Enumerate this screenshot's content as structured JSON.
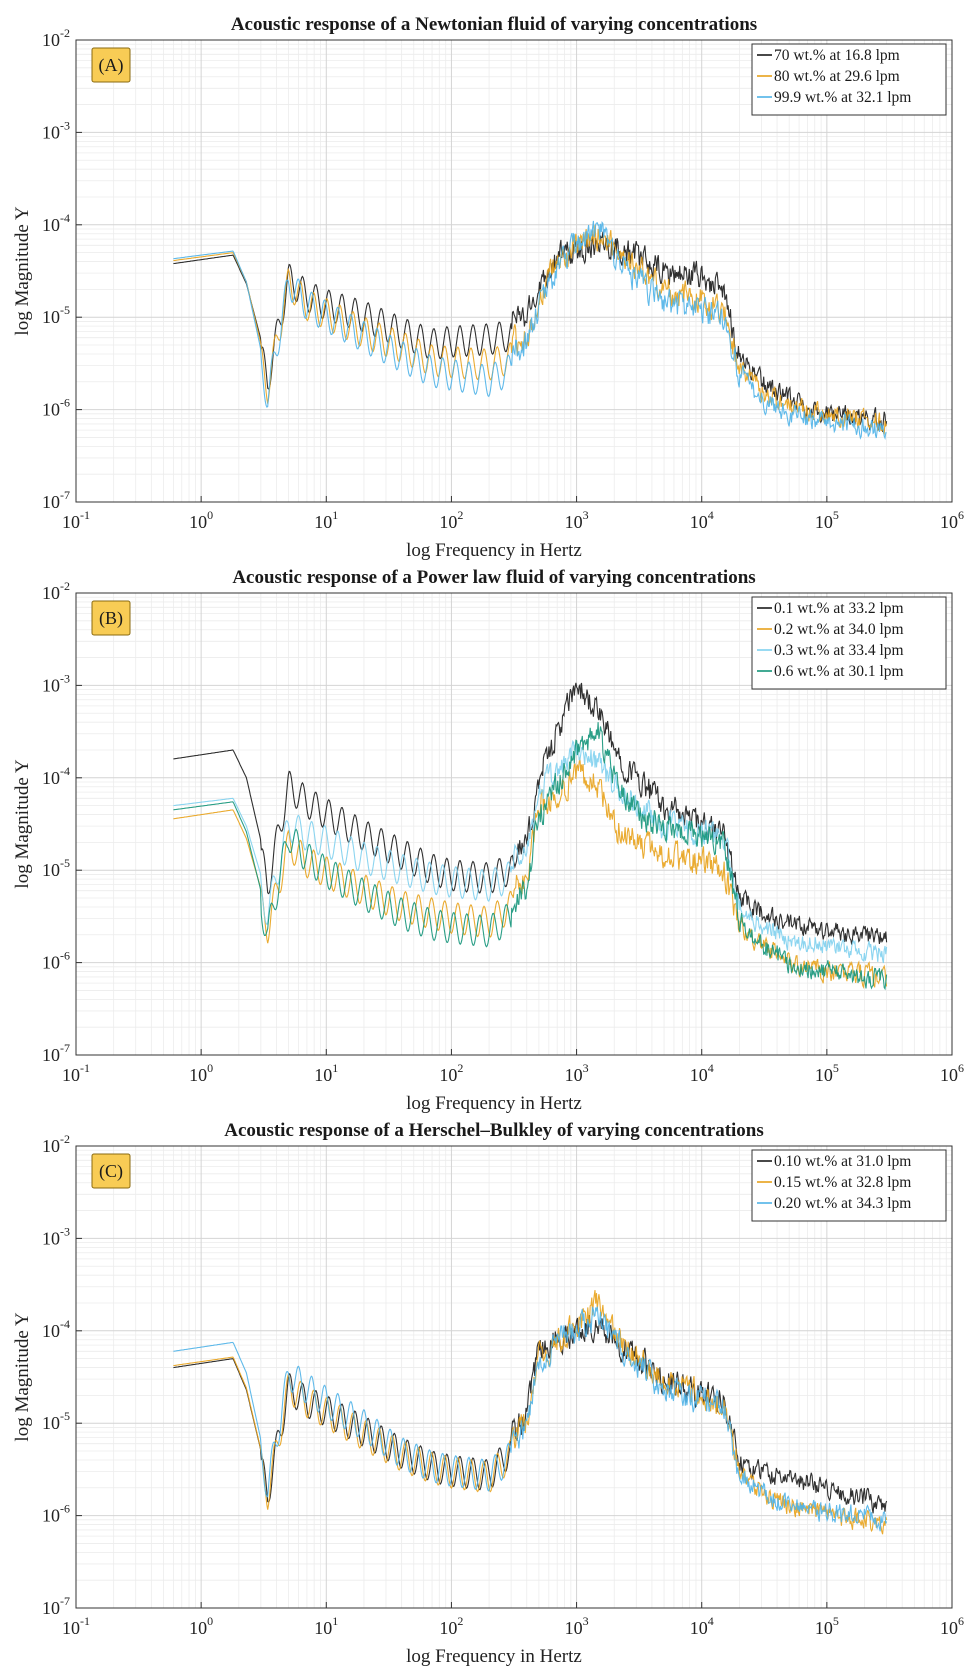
{
  "chart_data": [
    {
      "type": "line",
      "panel_label": "(A)",
      "title": "Acoustic response of a Newtonian fluid of varying concentrations",
      "xlabel": "log Frequency in Hertz",
      "ylabel": "log Magnitude Y",
      "xscale": "log",
      "yscale": "log",
      "xlim": [
        0.1,
        1000000
      ],
      "ylim": [
        1e-07,
        0.01
      ],
      "xticks": [
        "10^-1",
        "10^0",
        "10^1",
        "10^2",
        "10^3",
        "10^4",
        "10^5",
        "10^6"
      ],
      "yticks": [
        "10^-7",
        "10^-6",
        "10^-5",
        "10^-4",
        "10^-3",
        "10^-2"
      ],
      "grid": true,
      "legend_position": "top-right",
      "series": [
        {
          "name": "70 wt.% at 16.8 lpm",
          "color": "#1a1a1a",
          "x": [
            0.6,
            1.8,
            2.3,
            3.4,
            5,
            7,
            10,
            20,
            40,
            70,
            100,
            200,
            400,
            500,
            700,
            1000,
            1500,
            2000,
            3000,
            5000,
            10000,
            15000,
            20000,
            30000,
            50000,
            100000,
            200000,
            300000
          ],
          "y": [
            3.8e-05,
            4.7e-05,
            2.3e-05,
            3e-06,
            3.8e-05,
            2.5e-05,
            2e-05,
            1.5e-05,
            1e-05,
            7.5e-06,
            8e-06,
            8.5e-06,
            1e-05,
            2.2e-05,
            4.5e-05,
            5e-05,
            7e-05,
            6e-05,
            4.5e-05,
            3e-05,
            2.8e-05,
            1.8e-05,
            4e-06,
            2e-06,
            1.3e-06,
            9e-07,
            8e-07,
            7.5e-07
          ]
        },
        {
          "name": "80 wt.% at 29.6 lpm",
          "color": "#e8a21b",
          "x": [
            0.6,
            1.8,
            2.3,
            3.4,
            5,
            7,
            10,
            20,
            40,
            70,
            100,
            200,
            400,
            500,
            700,
            1000,
            1500,
            2000,
            3000,
            5000,
            10000,
            15000,
            20000,
            30000,
            50000,
            100000,
            200000,
            300000
          ],
          "y": [
            4.1e-05,
            5e-05,
            2.4e-05,
            2.5e-06,
            3.5e-05,
            2e-05,
            1.6e-05,
            1e-05,
            7e-06,
            5e-06,
            4.8e-06,
            4.5e-06,
            6e-06,
            1.5e-05,
            4e-05,
            5.5e-05,
            8e-05,
            6e-05,
            3.5e-05,
            2e-05,
            1.5e-05,
            1.2e-05,
            3e-06,
            1.6e-06,
            1.1e-06,
            9e-07,
            8e-07,
            7e-07
          ]
        },
        {
          "name": "99.9 wt.% at 32.1 lpm",
          "color": "#4fb3e8",
          "x": [
            0.6,
            1.8,
            2.3,
            3.4,
            5,
            7,
            10,
            20,
            40,
            70,
            100,
            200,
            400,
            500,
            700,
            1000,
            1500,
            2000,
            3000,
            5000,
            10000,
            15000,
            20000,
            30000,
            50000,
            100000,
            200000,
            300000
          ],
          "y": [
            4.3e-05,
            5.2e-05,
            2.4e-05,
            2e-06,
            3.5e-05,
            2e-05,
            1.5e-05,
            9e-06,
            5.5e-06,
            3.8e-06,
            3.5e-06,
            3e-06,
            5e-06,
            1.3e-05,
            3.5e-05,
            6e-05,
            9e-05,
            5e-05,
            2.5e-05,
            1.5e-05,
            1.2e-05,
            1e-05,
            2.5e-06,
            1.3e-06,
            9e-07,
            7.5e-07,
            6.5e-07,
            6e-07
          ]
        }
      ]
    },
    {
      "type": "line",
      "panel_label": "(B)",
      "title": "Acoustic response of a Power law fluid of varying concentrations",
      "xlabel": "log Frequency in Hertz",
      "ylabel": "log Magnitude Y",
      "xscale": "log",
      "yscale": "log",
      "xlim": [
        0.1,
        1000000
      ],
      "ylim": [
        1e-07,
        0.01
      ],
      "xticks": [
        "10^-1",
        "10^0",
        "10^1",
        "10^2",
        "10^3",
        "10^4",
        "10^5",
        "10^6"
      ],
      "yticks": [
        "10^-7",
        "10^-6",
        "10^-5",
        "10^-4",
        "10^-3",
        "10^-2"
      ],
      "grid": true,
      "legend_position": "top-right",
      "series": [
        {
          "name": "0.1 wt.% at 33.2 lpm",
          "color": "#1a1a1a",
          "x": [
            0.6,
            1.8,
            2.3,
            3.4,
            5,
            7,
            10,
            20,
            40,
            70,
            100,
            200,
            400,
            500,
            700,
            1000,
            1500,
            2000,
            3000,
            5000,
            10000,
            15000,
            20000,
            30000,
            50000,
            100000,
            200000,
            300000
          ],
          "y": [
            0.00016,
            0.0002,
            0.0001,
            1e-05,
            0.00012,
            8e-05,
            6e-05,
            3.5e-05,
            2.2e-05,
            1.5e-05,
            1.3e-05,
            1.2e-05,
            1.8e-05,
            0.0001,
            0.0003,
            0.001,
            0.0005,
            0.0002,
            0.0001,
            5e-05,
            3e-05,
            2.5e-05,
            5e-06,
            3.5e-06,
            2.5e-06,
            2.2e-06,
            2e-06,
            1.8e-06
          ]
        },
        {
          "name": "0.2 wt.% at 34.0 lpm",
          "color": "#e8a21b",
          "x": [
            0.6,
            1.8,
            2.3,
            3.4,
            5,
            7,
            10,
            20,
            40,
            70,
            100,
            200,
            400,
            500,
            700,
            1000,
            1500,
            2000,
            3000,
            5000,
            10000,
            15000,
            20000,
            30000,
            50000,
            100000,
            200000,
            300000
          ],
          "y": [
            3.6e-05,
            4.5e-05,
            2.2e-05,
            3.5e-06,
            2.8e-05,
            1.8e-05,
            1.4e-05,
            9e-06,
            6e-06,
            5e-06,
            4.5e-06,
            4e-06,
            8e-06,
            5e-05,
            6e-05,
            0.00012,
            8e-05,
            3e-05,
            2e-05,
            1.5e-05,
            1.2e-05,
            1e-05,
            2.5e-06,
            1.5e-06,
            1e-06,
            8e-07,
            7.5e-07,
            7e-07
          ]
        },
        {
          "name": "0.3 wt.% at 33.4 lpm",
          "color": "#7fd0ee",
          "x": [
            0.6,
            1.8,
            2.3,
            3.4,
            5,
            7,
            10,
            20,
            40,
            70,
            100,
            200,
            400,
            500,
            700,
            1000,
            1500,
            2000,
            3000,
            5000,
            10000,
            15000,
            20000,
            30000,
            50000,
            100000,
            200000,
            300000
          ],
          "y": [
            5e-05,
            6e-05,
            3e-05,
            5e-06,
            4.5e-05,
            3.5e-05,
            3e-05,
            2e-05,
            1.5e-05,
            1.2e-05,
            1.1e-05,
            1e-05,
            1.5e-05,
            7e-05,
            0.00012,
            0.0002,
            0.00015,
            8e-05,
            5e-05,
            3e-05,
            2.5e-05,
            2.2e-05,
            4e-06,
            2.5e-06,
            1.8e-06,
            1.5e-06,
            1.3e-06,
            1.2e-06
          ]
        },
        {
          "name": "0.6 wt.% at 30.1 lpm",
          "color": "#14957a",
          "x": [
            0.6,
            1.8,
            2.3,
            3.4,
            5,
            7,
            10,
            20,
            40,
            70,
            100,
            200,
            400,
            500,
            700,
            1000,
            1500,
            2000,
            3000,
            5000,
            10000,
            15000,
            20000,
            30000,
            50000,
            100000,
            200000,
            300000
          ],
          "y": [
            4.5e-05,
            5.5e-05,
            2.6e-05,
            3e-06,
            3.5e-05,
            2e-05,
            1.4e-05,
            8e-06,
            5e-06,
            3.8e-06,
            3.5e-06,
            3.2e-06,
            6e-06,
            4e-05,
            8e-05,
            0.0002,
            0.0003,
            0.0001,
            4e-05,
            3e-05,
            2.5e-05,
            2e-05,
            3e-06,
            1.5e-06,
            1e-06,
            8e-07,
            7e-07,
            6.5e-07
          ]
        }
      ]
    },
    {
      "type": "line",
      "panel_label": "(C)",
      "title": "Acoustic response of a Herschel–Bulkley of varying concentrations",
      "xlabel": "log Frequency in Hertz",
      "ylabel": "log Magnitude Y",
      "xscale": "log",
      "yscale": "log",
      "xlim": [
        0.1,
        1000000
      ],
      "ylim": [
        1e-07,
        0.01
      ],
      "xticks": [
        "10^-1",
        "10^0",
        "10^1",
        "10^2",
        "10^3",
        "10^4",
        "10^5",
        "10^6"
      ],
      "yticks": [
        "10^-7",
        "10^-6",
        "10^-5",
        "10^-4",
        "10^-3",
        "10^-2"
      ],
      "grid": true,
      "legend_position": "top-right",
      "series": [
        {
          "name": "0.10 wt.% at 31.0 lpm",
          "color": "#1a1a1a",
          "x": [
            0.6,
            1.8,
            2.3,
            3.4,
            5,
            7,
            10,
            20,
            40,
            70,
            100,
            200,
            400,
            500,
            700,
            1000,
            1500,
            2000,
            3000,
            5000,
            10000,
            15000,
            20000,
            30000,
            50000,
            100000,
            200000,
            300000
          ],
          "y": [
            4e-05,
            5e-05,
            2.3e-05,
            2.5e-06,
            3.5e-05,
            2.5e-05,
            2e-05,
            1.2e-05,
            7e-06,
            5e-06,
            4.5e-06,
            4e-06,
            1.2e-05,
            6e-05,
            8e-05,
            0.0001,
            0.00012,
            8e-05,
            5e-05,
            3e-05,
            2e-05,
            1.8e-05,
            4e-06,
            3e-06,
            2.5e-06,
            2e-06,
            1.5e-06,
            1.3e-06
          ]
        },
        {
          "name": "0.15 wt.% at 32.8 lpm",
          "color": "#e8a21b",
          "x": [
            0.6,
            1.8,
            2.3,
            3.4,
            5,
            7,
            10,
            20,
            40,
            70,
            100,
            200,
            400,
            500,
            700,
            1000,
            1500,
            2000,
            3000,
            5000,
            10000,
            15000,
            20000,
            30000,
            50000,
            100000,
            200000,
            300000
          ],
          "y": [
            4.2e-05,
            5.2e-05,
            2.4e-05,
            2.5e-06,
            3.6e-05,
            2.5e-05,
            1.9e-05,
            1.1e-05,
            6.5e-06,
            4.8e-06,
            4.3e-06,
            3.8e-06,
            1e-05,
            5e-05,
            7e-05,
            0.00012,
            0.0002,
            9e-05,
            5e-05,
            3e-05,
            2e-05,
            1.5e-05,
            3e-06,
            1.8e-06,
            1.3e-06,
            1e-06,
            9e-07,
            8e-07
          ]
        },
        {
          "name": "0.20 wt.% at 34.3 lpm",
          "color": "#4fb3e8",
          "x": [
            0.6,
            1.8,
            2.3,
            3.4,
            5,
            7,
            10,
            20,
            40,
            70,
            100,
            200,
            400,
            500,
            700,
            1000,
            1500,
            2000,
            3000,
            5000,
            10000,
            15000,
            20000,
            30000,
            50000,
            100000,
            200000,
            300000
          ],
          "y": [
            6e-05,
            7.5e-05,
            3.5e-05,
            3e-06,
            5e-05,
            3.5e-05,
            2.5e-05,
            1.4e-05,
            7e-06,
            5e-06,
            4.5e-06,
            4e-06,
            9e-06,
            4.5e-05,
            8e-05,
            0.0001,
            0.00015,
            8e-05,
            4.5e-05,
            2.5e-05,
            1.8e-05,
            1.5e-05,
            3e-06,
            1.8e-06,
            1.3e-06,
            1.1e-06,
            1e-06,
            9e-07
          ]
        }
      ]
    }
  ]
}
